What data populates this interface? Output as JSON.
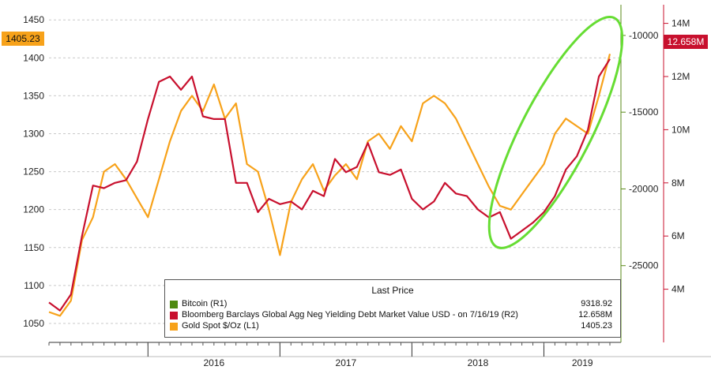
{
  "chart_data": {
    "type": "line",
    "x_range": [
      "2015-04",
      "2019-07"
    ],
    "x_ticks": [
      "2016",
      "2017",
      "2018",
      "2019"
    ],
    "axes": {
      "left": {
        "ticks": [
          "1450",
          "1400",
          "1350",
          "1300",
          "1250",
          "1200",
          "1150",
          "1100",
          "1050"
        ],
        "ylim": [
          1025,
          1470
        ]
      },
      "right_outer": {
        "ticks": [
          "14M",
          "12M",
          "10M",
          "8M",
          "6M",
          "4M"
        ],
        "ylim": [
          2,
          14.7
        ]
      },
      "right_inner": {
        "ticks": [
          "-10000",
          "-15000",
          "-20000",
          "-25000"
        ],
        "ylim": [
          -30000,
          -8000
        ],
        "color": "#5a8a18"
      }
    },
    "series": [
      {
        "name": "Gold Spot $/Oz (L1)",
        "axis": "left",
        "color": "#f7a21a",
        "x": [
          "2015-04",
          "2015-05",
          "2015-06",
          "2015-07",
          "2015-08",
          "2015-09",
          "2015-10",
          "2015-11",
          "2015-12",
          "2016-01",
          "2016-02",
          "2016-03",
          "2016-04",
          "2016-05",
          "2016-06",
          "2016-07",
          "2016-08",
          "2016-09",
          "2016-10",
          "2016-11",
          "2016-12",
          "2017-01",
          "2017-02",
          "2017-03",
          "2017-04",
          "2017-05",
          "2017-06",
          "2017-07",
          "2017-08",
          "2017-09",
          "2017-10",
          "2017-11",
          "2017-12",
          "2018-01",
          "2018-02",
          "2018-03",
          "2018-04",
          "2018-05",
          "2018-06",
          "2018-07",
          "2018-08",
          "2018-09",
          "2018-10",
          "2018-11",
          "2018-12",
          "2019-01",
          "2019-02",
          "2019-03",
          "2019-04",
          "2019-05",
          "2019-06",
          "2019-07"
        ],
        "y": [
          1065,
          1060,
          1080,
          1160,
          1190,
          1250,
          1260,
          1240,
          1215,
          1190,
          1240,
          1290,
          1330,
          1350,
          1330,
          1365,
          1320,
          1340,
          1260,
          1250,
          1200,
          1140,
          1210,
          1240,
          1260,
          1225,
          1245,
          1260,
          1240,
          1290,
          1300,
          1280,
          1310,
          1290,
          1340,
          1350,
          1340,
          1320,
          1290,
          1260,
          1230,
          1205,
          1200,
          1220,
          1240,
          1260,
          1300,
          1320,
          1310,
          1300,
          1350,
          1405.23
        ]
      },
      {
        "name": "Bloomberg Barclays Global Agg Neg Yielding Debt Market Value USD - on 7/16/19 (R2)",
        "axis": "right_outer",
        "color": "#c8102e",
        "x": [
          "2015-04",
          "2015-05",
          "2015-06",
          "2015-07",
          "2015-08",
          "2015-09",
          "2015-10",
          "2015-11",
          "2015-12",
          "2016-01",
          "2016-02",
          "2016-03",
          "2016-04",
          "2016-05",
          "2016-06",
          "2016-07",
          "2016-08",
          "2016-09",
          "2016-10",
          "2016-11",
          "2016-12",
          "2017-01",
          "2017-02",
          "2017-03",
          "2017-04",
          "2017-05",
          "2017-06",
          "2017-07",
          "2017-08",
          "2017-09",
          "2017-10",
          "2017-11",
          "2017-12",
          "2018-01",
          "2018-02",
          "2018-03",
          "2018-04",
          "2018-05",
          "2018-06",
          "2018-07",
          "2018-08",
          "2018-09",
          "2018-10",
          "2018-11",
          "2018-12",
          "2019-01",
          "2019-02",
          "2019-03",
          "2019-04",
          "2019-05",
          "2019-06",
          "2019-07"
        ],
        "y": [
          3.5,
          3.2,
          3.8,
          6.0,
          7.9,
          7.8,
          8.0,
          8.1,
          8.8,
          10.4,
          11.8,
          12.0,
          11.5,
          12.0,
          10.5,
          10.4,
          10.4,
          8.0,
          8.0,
          6.9,
          7.4,
          7.2,
          7.3,
          7.0,
          7.7,
          7.5,
          8.9,
          8.4,
          8.6,
          9.5,
          8.4,
          8.3,
          8.5,
          7.4,
          7.0,
          7.3,
          8.0,
          7.6,
          7.5,
          7.0,
          6.7,
          6.9,
          5.9,
          6.2,
          6.5,
          6.9,
          7.5,
          8.5,
          9.0,
          10.0,
          12.0,
          12.658
        ]
      },
      {
        "name": "Bitcoin (R1)",
        "axis": "right_inner",
        "color": "#4f8a10",
        "x": [],
        "y": []
      }
    ],
    "legend": {
      "title": "Last Price",
      "placement": "bottom-right",
      "entries": [
        {
          "label": "Bitcoin  (R1)",
          "value": "9318.92",
          "color": "#4f8a10"
        },
        {
          "label": "Bloomberg Barclays Global Agg Neg Yielding Debt Market Value USD -   on 7/16/19  (R2)",
          "value": "12.658M",
          "color": "#c8102e"
        },
        {
          "label": "Gold Spot $/Oz  (L1)",
          "value": "1405.23",
          "color": "#f7a21a"
        }
      ]
    },
    "last_value_badges": {
      "left": "1405.23",
      "right": "12.658M"
    },
    "annotation": {
      "shape": "ellipse",
      "color": "#66dd33",
      "x_range": [
        "2018-08",
        "2019-07"
      ]
    },
    "grid": "horizontal dashed"
  }
}
